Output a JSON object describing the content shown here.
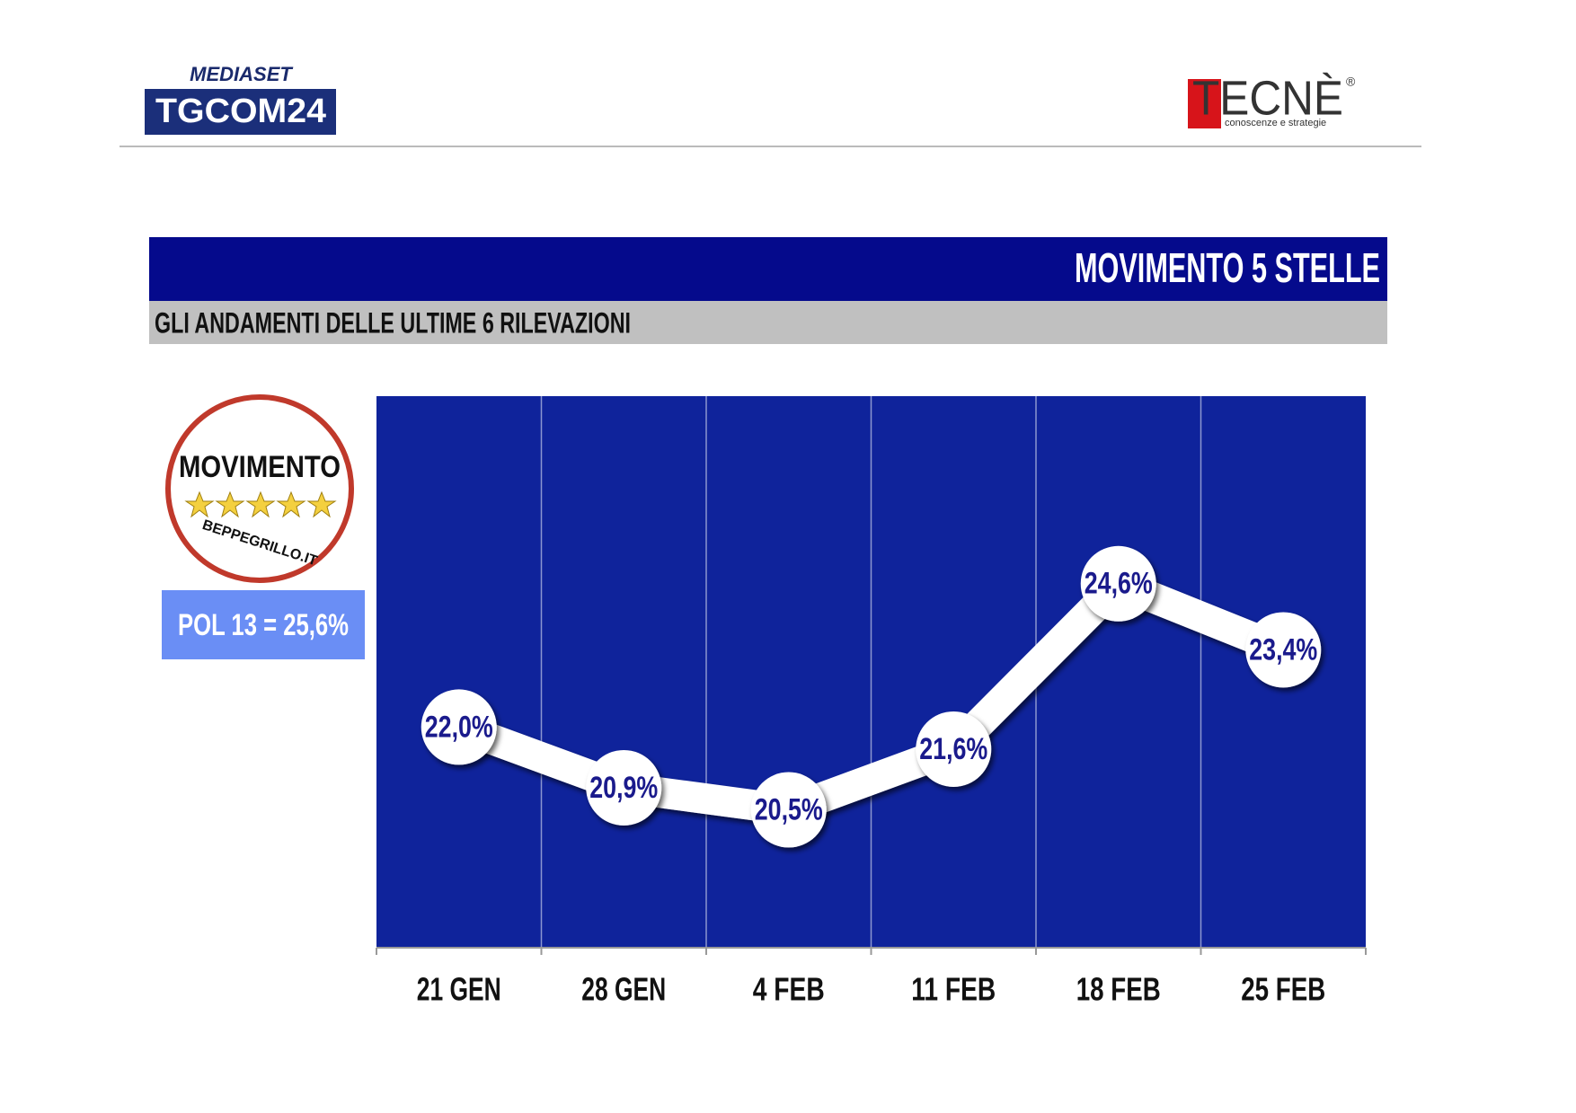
{
  "header": {
    "mediaset": "MEDIASET",
    "tgcom": "TGCOM24",
    "tecne": "TECNÈ",
    "registered": "®",
    "tecne_tagline": "conoscenze e strategie"
  },
  "party_logo": {
    "name": "MOVIMENTO",
    "site": "BEPPEGRILLO.IT",
    "badge": "POL 13 = 25,6%"
  },
  "chart_data": {
    "type": "line",
    "title": "MOVIMENTO 5 STELLE",
    "subtitle": "GLI ANDAMENTI DELLE ULTIME 6 RILEVAZIONI",
    "categories": [
      "21 GEN",
      "28 GEN",
      "4 FEB",
      "11 FEB",
      "18 FEB",
      "25 FEB"
    ],
    "values": [
      22.0,
      20.9,
      20.5,
      21.6,
      24.6,
      23.4
    ],
    "value_labels": [
      "22,0%",
      "20,9%",
      "20,5%",
      "21,6%",
      "24,6%",
      "23,4%"
    ],
    "ylim": [
      18,
      28
    ],
    "color": "#ffffff",
    "background": "#0f239b"
  }
}
